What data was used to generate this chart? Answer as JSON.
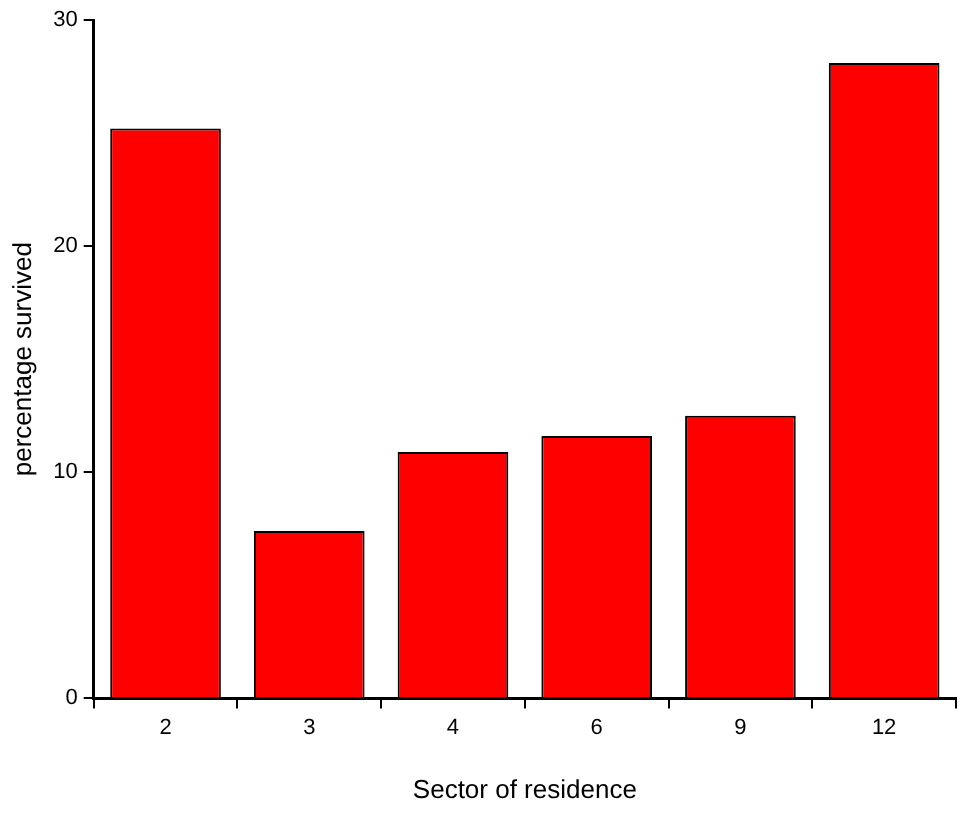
{
  "chart_data": {
    "type": "bar",
    "xlabel": "Sector of residence",
    "ylabel": "percentage survived",
    "categories": [
      "2",
      "3",
      "4",
      "6",
      "9",
      "12"
    ],
    "values": [
      25.2,
      7.4,
      10.9,
      11.6,
      12.5,
      28.1
    ],
    "color": "#ff0000",
    "ylim": [
      0,
      30
    ],
    "yticks": [
      0,
      10,
      20,
      30
    ],
    "grid": false
  }
}
